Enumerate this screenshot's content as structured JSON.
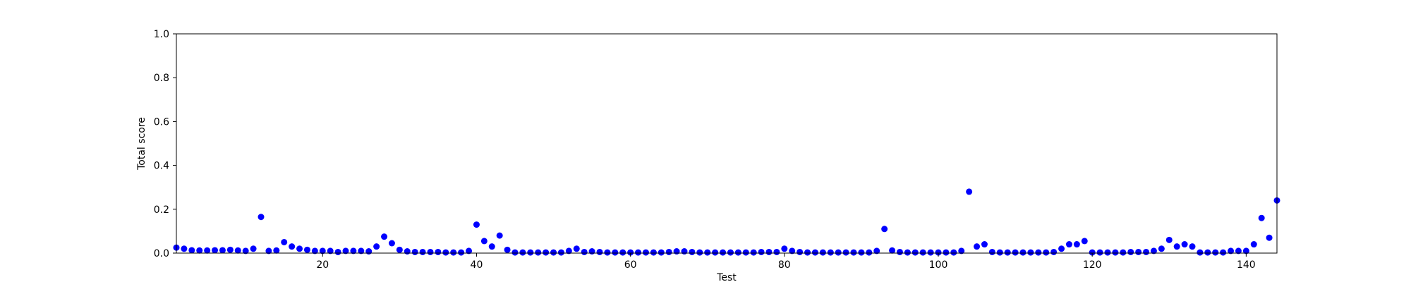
{
  "chart_data": {
    "type": "scatter",
    "xlabel": "Test",
    "ylabel": "Total score",
    "xlim": [
      1,
      144
    ],
    "ylim": [
      0,
      1.0
    ],
    "x_ticks": [
      20,
      40,
      60,
      80,
      100,
      120,
      140
    ],
    "x_tick_labels": [
      "20",
      "40",
      "60",
      "80",
      "100",
      "120",
      "140"
    ],
    "y_ticks": [
      0,
      0.2,
      0.4,
      0.6,
      0.8,
      1.0
    ],
    "y_tick_labels": [
      "0.0",
      "0.2",
      "0.4",
      "0.6",
      "0.8",
      "1.0"
    ],
    "grid": false,
    "marker_color": "#0000ff",
    "series": [
      {
        "x": [
          1,
          2,
          3,
          4,
          5,
          6,
          7,
          8,
          9,
          10,
          11,
          12,
          13,
          14,
          15,
          16,
          17,
          18,
          19,
          20,
          21,
          22,
          23,
          24,
          25,
          26,
          27,
          28,
          29,
          30,
          31,
          32,
          33,
          34,
          35,
          36,
          37,
          38,
          39,
          40,
          41,
          42,
          43,
          44,
          45,
          46,
          47,
          48,
          49,
          50,
          51,
          52,
          53,
          54,
          55,
          56,
          57,
          58,
          59,
          60,
          61,
          62,
          63,
          64,
          65,
          66,
          67,
          68,
          69,
          70,
          71,
          72,
          73,
          74,
          75,
          76,
          77,
          78,
          79,
          80,
          81,
          82,
          83,
          84,
          85,
          86,
          87,
          88,
          89,
          90,
          91,
          92,
          93,
          94,
          95,
          96,
          97,
          98,
          99,
          100,
          101,
          102,
          103,
          104,
          105,
          106,
          107,
          108,
          109,
          110,
          111,
          112,
          113,
          114,
          115,
          116,
          117,
          118,
          119,
          120,
          121,
          122,
          123,
          124,
          125,
          126,
          127,
          128,
          129,
          130,
          131,
          132,
          133,
          134,
          135,
          136,
          137,
          138,
          139,
          140,
          141,
          142,
          143,
          144
        ],
        "y": [
          0.025,
          0.02,
          0.013,
          0.012,
          0.012,
          0.013,
          0.013,
          0.015,
          0.012,
          0.01,
          0.02,
          0.165,
          0.01,
          0.012,
          0.05,
          0.03,
          0.02,
          0.015,
          0.01,
          0.01,
          0.01,
          0.005,
          0.01,
          0.01,
          0.01,
          0.008,
          0.03,
          0.075,
          0.045,
          0.015,
          0.008,
          0.005,
          0.005,
          0.005,
          0.005,
          0.003,
          0.003,
          0.003,
          0.01,
          0.13,
          0.055,
          0.03,
          0.08,
          0.015,
          0.003,
          0.003,
          0.003,
          0.003,
          0.003,
          0.003,
          0.003,
          0.01,
          0.02,
          0.005,
          0.008,
          0.005,
          0.003,
          0.003,
          0.003,
          0.003,
          0.003,
          0.003,
          0.003,
          0.003,
          0.005,
          0.008,
          0.008,
          0.005,
          0.003,
          0.003,
          0.003,
          0.003,
          0.003,
          0.003,
          0.003,
          0.003,
          0.005,
          0.005,
          0.005,
          0.02,
          0.01,
          0.005,
          0.003,
          0.003,
          0.003,
          0.003,
          0.003,
          0.003,
          0.003,
          0.003,
          0.003,
          0.01,
          0.11,
          0.012,
          0.005,
          0.003,
          0.003,
          0.003,
          0.003,
          0.003,
          0.003,
          0.003,
          0.01,
          0.28,
          0.03,
          0.04,
          0.005,
          0.003,
          0.003,
          0.003,
          0.003,
          0.003,
          0.003,
          0.003,
          0.005,
          0.02,
          0.04,
          0.04,
          0.055,
          0.003,
          0.003,
          0.003,
          0.003,
          0.003,
          0.005,
          0.005,
          0.005,
          0.01,
          0.02,
          0.06,
          0.03,
          0.04,
          0.03,
          0.003,
          0.003,
          0.003,
          0.003,
          0.01,
          0.01,
          0.01,
          0.04,
          0.16,
          0.07,
          0.24
        ]
      }
    ]
  }
}
